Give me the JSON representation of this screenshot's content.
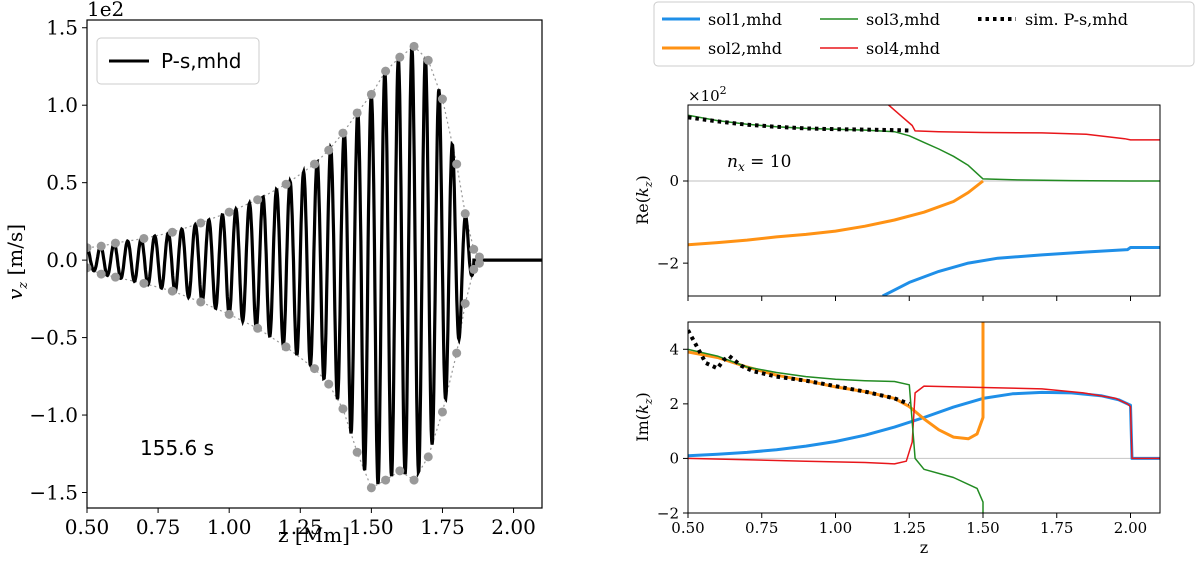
{
  "chart_data": [
    {
      "id": "left",
      "type": "line",
      "title": "",
      "xlabel": "z [Mm]",
      "ylabel": "v_z [m/s]",
      "ylabel_var": "v",
      "ylabel_sub": "z",
      "ylabel_unit": " [m/s]",
      "offset_label": "1e2",
      "xlim": [
        0.5,
        2.1
      ],
      "ylim": [
        -1.6,
        1.55
      ],
      "xticks": [
        0.5,
        0.75,
        1.0,
        1.25,
        1.5,
        1.75,
        2.0
      ],
      "xtick_labels": [
        "0.50",
        "0.75",
        "1.00",
        "1.25",
        "1.50",
        "1.75",
        "2.00"
      ],
      "yticks": [
        -1.5,
        -1.0,
        -0.5,
        0.0,
        0.5,
        1.0,
        1.5
      ],
      "ytick_labels": [
        "−1.5",
        "−1.0",
        "−0.5",
        "0.0",
        "0.5",
        "1.0",
        "1.5"
      ],
      "legend": {
        "position": "top-left",
        "entries": [
          {
            "label": "P-s,mhd",
            "color": "#000000"
          }
        ]
      },
      "annotation": "155.6 s",
      "series": [
        {
          "name": "P-s,mhd",
          "color": "#000000",
          "kind": "oscillation",
          "wavelength": 0.0476,
          "phase_x": 0.5,
          "x_start": 0.5,
          "x_end": 1.86,
          "flat_until": 2.1
        },
        {
          "name": "upper envelope",
          "color": "#999999",
          "marker": "dot",
          "x": [
            0.5,
            0.55,
            0.6,
            0.7,
            0.8,
            0.9,
            1.0,
            1.1,
            1.2,
            1.3,
            1.35,
            1.4,
            1.45,
            1.5,
            1.55,
            1.6,
            1.65,
            1.7,
            1.75,
            1.8,
            1.83,
            1.86,
            1.88
          ],
          "y": [
            0.08,
            0.09,
            0.11,
            0.14,
            0.18,
            0.24,
            0.31,
            0.39,
            0.49,
            0.62,
            0.71,
            0.82,
            0.95,
            1.07,
            1.22,
            1.31,
            1.38,
            1.29,
            1.04,
            0.62,
            0.3,
            0.07,
            0.02
          ]
        },
        {
          "name": "lower envelope",
          "color": "#999999",
          "marker": "dot",
          "x": [
            0.5,
            0.55,
            0.6,
            0.7,
            0.8,
            0.9,
            1.0,
            1.1,
            1.2,
            1.3,
            1.35,
            1.4,
            1.45,
            1.5,
            1.55,
            1.6,
            1.65,
            1.7,
            1.75,
            1.8,
            1.83,
            1.86,
            1.88
          ],
          "y": [
            -0.05,
            -0.09,
            -0.11,
            -0.15,
            -0.2,
            -0.27,
            -0.35,
            -0.44,
            -0.56,
            -0.7,
            -0.8,
            -0.96,
            -1.24,
            -1.47,
            -1.42,
            -1.36,
            -1.42,
            -1.27,
            -0.98,
            -0.6,
            -0.28,
            -0.06,
            -0.02
          ]
        }
      ]
    },
    {
      "id": "right_top",
      "type": "line",
      "xlabel": "",
      "ylabel": "Re(k_z)",
      "ylabel_var": "k",
      "ylabel_sub": "z",
      "ylabel_wrap": [
        "Re(",
        ")"
      ],
      "offset_label": "×10",
      "offset_exp": "2",
      "xlim": [
        0.5,
        2.1
      ],
      "ylim": [
        -2.8,
        1.85
      ],
      "xticks": [
        0.5,
        0.75,
        1.0,
        1.25,
        1.5,
        1.75,
        2.0
      ],
      "yticks": [
        -2,
        0
      ],
      "ytick_labels": [
        "−2",
        "0"
      ],
      "annotation_var": "n",
      "annotation_sub": "x",
      "annotation_rest": " = 10",
      "series": [
        {
          "name": "sol1,mhd",
          "color": "#1f8fe8",
          "x": [
            1.16,
            1.25,
            1.35,
            1.45,
            1.55,
            1.7,
            1.85,
            1.99,
            2.0,
            2.1
          ],
          "y": [
            -2.8,
            -2.47,
            -2.2,
            -2.0,
            -1.88,
            -1.8,
            -1.73,
            -1.67,
            -1.62,
            -1.62
          ]
        },
        {
          "name": "sol2,mhd",
          "color": "#ff9214",
          "x": [
            0.5,
            0.6,
            0.7,
            0.8,
            0.9,
            1.0,
            1.1,
            1.2,
            1.3,
            1.4,
            1.45,
            1.5
          ],
          "y": [
            -1.55,
            -1.5,
            -1.44,
            -1.36,
            -1.3,
            -1.22,
            -1.1,
            -0.95,
            -0.76,
            -0.5,
            -0.28,
            0.0
          ]
        },
        {
          "name": "sol3,mhd",
          "color": "#228b22",
          "x": [
            0.5,
            0.6,
            0.7,
            0.8,
            0.9,
            1.0,
            1.1,
            1.2,
            1.25,
            1.3,
            1.35,
            1.4,
            1.45,
            1.5,
            1.6,
            1.8,
            2.0,
            2.1
          ],
          "y": [
            1.6,
            1.47,
            1.38,
            1.32,
            1.28,
            1.26,
            1.24,
            1.2,
            1.1,
            0.94,
            0.78,
            0.6,
            0.38,
            0.05,
            0.03,
            0.01,
            0.0,
            0.0
          ]
        },
        {
          "name": "sol4,mhd",
          "color": "#e8161b",
          "x": [
            1.18,
            1.22,
            1.26,
            1.27,
            1.35,
            1.5,
            1.7,
            1.85,
            1.98,
            2.0,
            2.1
          ],
          "y": [
            1.85,
            1.6,
            1.35,
            1.22,
            1.2,
            1.18,
            1.17,
            1.14,
            1.03,
            1.0,
            1.0
          ]
        },
        {
          "name": "sim. P-s,mhd",
          "color": "#000000",
          "dash": "dotted",
          "x": [
            0.5,
            0.6,
            0.7,
            0.8,
            0.9,
            1.0,
            1.1,
            1.2,
            1.25
          ],
          "y": [
            1.55,
            1.45,
            1.37,
            1.32,
            1.28,
            1.26,
            1.25,
            1.24,
            1.23
          ]
        }
      ]
    },
    {
      "id": "right_bottom",
      "type": "line",
      "xlabel": "z",
      "ylabel": "Im(k_z)",
      "ylabel_var": "k",
      "ylabel_sub": "z",
      "ylabel_wrap": [
        "Im(",
        ")"
      ],
      "xlim": [
        0.5,
        2.1
      ],
      "ylim": [
        -2.0,
        5.0
      ],
      "xticks": [
        0.5,
        0.75,
        1.0,
        1.25,
        1.5,
        1.75,
        2.0
      ],
      "xtick_labels": [
        "0.50",
        "0.75",
        "1.00",
        "1.25",
        "1.50",
        "1.75",
        "2.00"
      ],
      "yticks": [
        -2,
        0,
        2,
        4
      ],
      "ytick_labels": [
        "−2",
        "0",
        "2",
        "4"
      ],
      "series": [
        {
          "name": "sol1,mhd",
          "color": "#1f8fe8",
          "x": [
            0.5,
            0.6,
            0.7,
            0.8,
            0.9,
            1.0,
            1.1,
            1.2,
            1.3,
            1.4,
            1.5,
            1.6,
            1.7,
            1.8,
            1.9,
            1.96,
            2.0,
            2.005,
            2.1
          ],
          "y": [
            0.1,
            0.15,
            0.22,
            0.32,
            0.45,
            0.62,
            0.85,
            1.15,
            1.5,
            1.88,
            2.2,
            2.37,
            2.42,
            2.4,
            2.3,
            2.15,
            1.95,
            0.0,
            0.0
          ]
        },
        {
          "name": "sol2,mhd",
          "color": "#ff9214",
          "x": [
            0.5,
            0.6,
            0.7,
            0.8,
            0.9,
            1.0,
            1.1,
            1.2,
            1.25,
            1.3,
            1.35,
            1.4,
            1.45,
            1.48,
            1.5,
            1.5
          ],
          "y": [
            3.9,
            3.7,
            3.35,
            3.05,
            2.85,
            2.62,
            2.45,
            2.2,
            1.9,
            1.45,
            1.05,
            0.78,
            0.72,
            0.9,
            1.5,
            5.0
          ]
        },
        {
          "name": "sol3,mhd",
          "color": "#228b22",
          "x": [
            0.5,
            0.6,
            0.7,
            0.8,
            0.9,
            1.0,
            1.1,
            1.2,
            1.25,
            1.27,
            1.3,
            1.4,
            1.48,
            1.5,
            1.5
          ],
          "y": [
            4.0,
            3.75,
            3.35,
            3.15,
            3.0,
            2.9,
            2.85,
            2.82,
            2.7,
            0.0,
            -0.4,
            -0.7,
            -1.1,
            -1.6,
            -2.0
          ]
        },
        {
          "name": "sol4,mhd",
          "color": "#e8161b",
          "x": [
            0.5,
            0.7,
            0.9,
            1.1,
            1.2,
            1.24,
            1.26,
            1.27,
            1.3,
            1.5,
            1.7,
            1.84,
            1.95,
            1.99,
            2.0,
            2.005,
            2.1
          ],
          "y": [
            0.0,
            -0.05,
            -0.1,
            -0.15,
            -0.2,
            -0.1,
            0.6,
            2.4,
            2.65,
            2.6,
            2.55,
            2.4,
            2.2,
            2.0,
            1.9,
            0.0,
            0.0
          ]
        },
        {
          "name": "sim. P-s,mhd",
          "color": "#000000",
          "dash": "dotted",
          "x": [
            0.5,
            0.53,
            0.56,
            0.6,
            0.62,
            0.64,
            0.68,
            0.72,
            0.8,
            0.9,
            1.0,
            1.1,
            1.2,
            1.25
          ],
          "y": [
            4.7,
            4.1,
            3.5,
            3.3,
            3.6,
            3.75,
            3.4,
            3.2,
            3.0,
            2.85,
            2.65,
            2.45,
            2.2,
            2.0
          ]
        }
      ]
    }
  ],
  "legend": {
    "entries": [
      {
        "label": "sol1,mhd",
        "color": "#1f8fe8",
        "style": "thick"
      },
      {
        "label": "sol3,mhd",
        "color": "#228b22",
        "style": "thin"
      },
      {
        "label": "sim. P-s,mhd",
        "color": "#000000",
        "style": "dotted"
      },
      {
        "label": "sol2,mhd",
        "color": "#ff9214",
        "style": "thick"
      },
      {
        "label": "sol4,mhd",
        "color": "#e8161b",
        "style": "thin"
      }
    ]
  }
}
